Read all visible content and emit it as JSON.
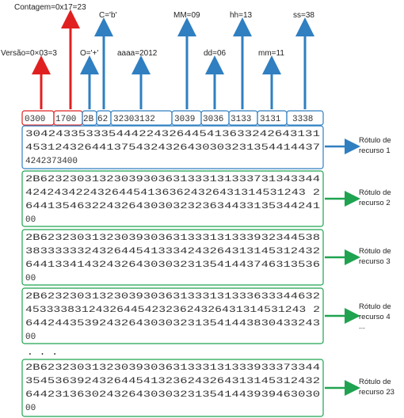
{
  "header": {
    "labels": {
      "versao": "Versão=0×03=3",
      "contagem": "Contagem=0x17=23",
      "o": "O='+'",
      "c": "C='b'",
      "aaaa": "aaaa=2012",
      "mm_month": "MM=09",
      "dd": "dd=06",
      "hh": "hh=13",
      "mm_min": "mm=11",
      "ss": "ss=38"
    },
    "cells": [
      "0300",
      "1700",
      "2B",
      "62",
      "32303132",
      "3039",
      "3036",
      "3133",
      "3131",
      "3338"
    ]
  },
  "records": [
    {
      "lines": [
        "304243353335444224326445413633242643131",
        "4531243264413754324326430303231354414437",
        "4242373400"
      ],
      "label_line1": "Rótulo de",
      "label_line2": "recurso 1",
      "label_extra": ""
    },
    {
      "lines": [
        "2B62323031323039303631333131333731343344",
        "424243422432644541363624326431314531243 2",
        "6441354632243264303032323634433135344241",
        "00"
      ],
      "label_line1": "Rótulo de",
      "label_line2": "recurso 2",
      "label_extra": ""
    },
    {
      "lines": [
        "2B62323031323039303631333131333932344538",
        "3833333324326445413334243264313145312432",
        "6441334143243264303032313541443746313536",
        "00"
      ],
      "label_line1": "Rótulo de",
      "label_line2": "recurso 3",
      "label_extra": ""
    },
    {
      "lines": [
        "2B62323031323039303631333131333633344632",
        "4533338312432644542323624326431314531243 2",
        "6442443539243264303032313541443830433243",
        "00"
      ],
      "label_line1": "Rótulo de",
      "label_line2": "recurso 4",
      "label_extra": "..."
    },
    {
      "lines": [
        "2B62323031323039303631333131333933373344",
        "3545363924326445413236243264313145312432",
        "6442313630243264303032313541443939463030",
        "00"
      ],
      "label_line1": "Rótulo de",
      "label_line2": "recurso 23",
      "label_extra": ""
    }
  ],
  "ellipsis": ". . .",
  "colors": {
    "red": "#e02020",
    "blue": "#2f7fc1",
    "green": "#1fa350",
    "text": "#333333"
  }
}
